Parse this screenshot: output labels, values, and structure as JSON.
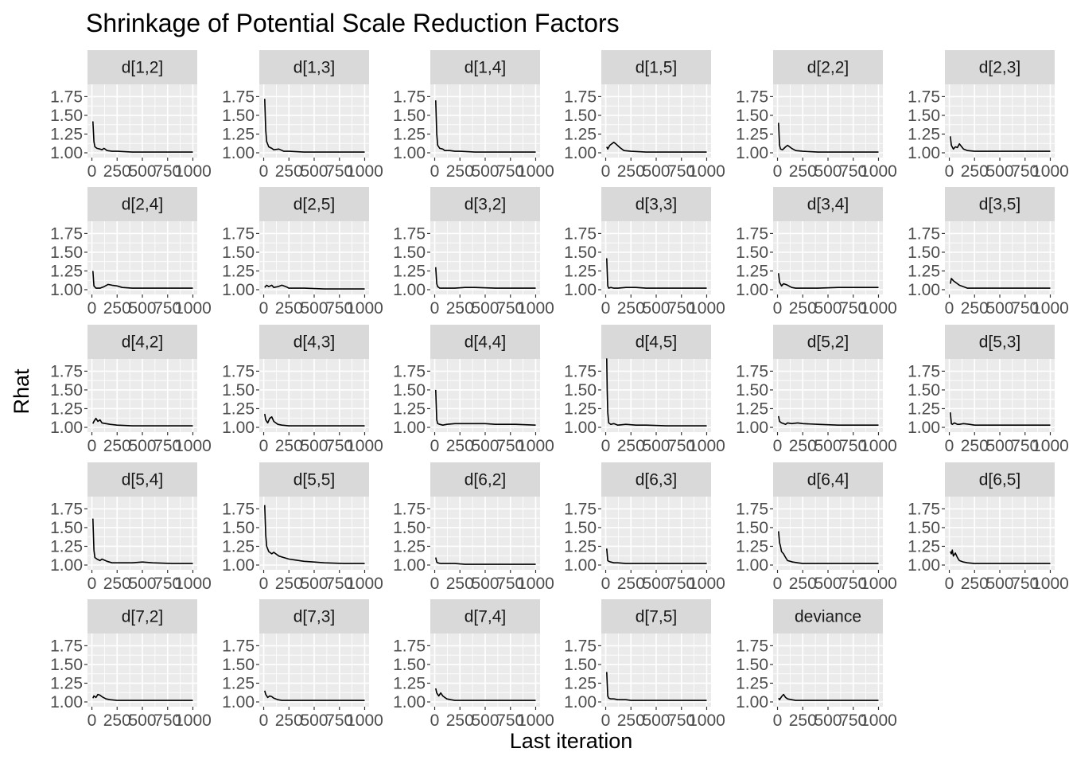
{
  "chart_data": {
    "type": "line",
    "title": "Shrinkage of Potential Scale Reduction Factors",
    "xlabel": "Last iteration",
    "ylabel": "Rhat",
    "xlim": [
      0,
      1000
    ],
    "ylim": [
      1.0,
      1.85
    ],
    "x_ticks": [
      0,
      250,
      500,
      750,
      1000
    ],
    "x_tick_labels": [
      "0",
      "250",
      "500",
      "750",
      "1000"
    ],
    "y_ticks": [
      1.0,
      1.25,
      1.5,
      1.75
    ],
    "y_tick_labels": [
      "1.00",
      "1.25",
      "1.50",
      "1.75"
    ],
    "grid": true,
    "panel_background": "#EBEBEB",
    "strip_background": "#D9D9D9",
    "grid_color": "#FFFFFF",
    "line_color": "#000000",
    "facets": [
      {
        "label": "d[1,2]",
        "x": [
          10,
          20,
          30,
          50,
          80,
          100,
          120,
          150,
          200,
          250,
          400,
          600,
          800,
          1000
        ],
        "y": [
          1.42,
          1.15,
          1.08,
          1.06,
          1.05,
          1.04,
          1.06,
          1.03,
          1.02,
          1.02,
          1.01,
          1.01,
          1.01,
          1.01
        ]
      },
      {
        "label": "d[1,3]",
        "x": [
          10,
          20,
          30,
          50,
          80,
          100,
          150,
          200,
          250,
          400,
          600,
          800,
          1000
        ],
        "y": [
          1.72,
          1.3,
          1.15,
          1.08,
          1.06,
          1.04,
          1.05,
          1.02,
          1.02,
          1.01,
          1.01,
          1.01,
          1.01
        ]
      },
      {
        "label": "d[1,4]",
        "x": [
          10,
          20,
          30,
          50,
          80,
          100,
          150,
          200,
          250,
          400,
          600,
          800,
          1000
        ],
        "y": [
          1.7,
          1.25,
          1.1,
          1.06,
          1.05,
          1.03,
          1.03,
          1.02,
          1.02,
          1.01,
          1.01,
          1.01,
          1.01
        ]
      },
      {
        "label": "d[1,5]",
        "x": [
          10,
          20,
          40,
          60,
          80,
          100,
          140,
          180,
          250,
          400,
          600,
          800,
          1000
        ],
        "y": [
          1.08,
          1.05,
          1.1,
          1.12,
          1.14,
          1.12,
          1.07,
          1.03,
          1.02,
          1.01,
          1.01,
          1.01,
          1.01
        ]
      },
      {
        "label": "d[2,2]",
        "x": [
          10,
          20,
          30,
          50,
          80,
          100,
          140,
          180,
          250,
          400,
          600,
          800,
          1000
        ],
        "y": [
          1.4,
          1.1,
          1.05,
          1.04,
          1.08,
          1.1,
          1.06,
          1.03,
          1.02,
          1.01,
          1.01,
          1.01,
          1.01
        ]
      },
      {
        "label": "d[2,3]",
        "x": [
          10,
          20,
          40,
          60,
          80,
          100,
          140,
          180,
          250,
          400,
          600,
          800,
          1000
        ],
        "y": [
          1.22,
          1.1,
          1.05,
          1.08,
          1.07,
          1.12,
          1.05,
          1.03,
          1.02,
          1.02,
          1.02,
          1.02,
          1.02
        ]
      },
      {
        "label": "d[2,4]",
        "x": [
          10,
          20,
          40,
          80,
          120,
          160,
          200,
          250,
          300,
          400,
          600,
          800,
          1000
        ],
        "y": [
          1.25,
          1.05,
          1.02,
          1.02,
          1.04,
          1.07,
          1.06,
          1.05,
          1.03,
          1.02,
          1.02,
          1.02,
          1.02
        ]
      },
      {
        "label": "d[2,5]",
        "x": [
          10,
          30,
          50,
          80,
          100,
          140,
          180,
          220,
          250,
          400,
          600,
          800,
          1000
        ],
        "y": [
          1.03,
          1.06,
          1.04,
          1.06,
          1.03,
          1.04,
          1.06,
          1.04,
          1.02,
          1.02,
          1.01,
          1.01,
          1.01
        ]
      },
      {
        "label": "d[3,2]",
        "x": [
          10,
          20,
          30,
          50,
          80,
          120,
          200,
          300,
          400,
          600,
          800,
          1000
        ],
        "y": [
          1.3,
          1.08,
          1.04,
          1.02,
          1.02,
          1.02,
          1.02,
          1.03,
          1.03,
          1.02,
          1.02,
          1.02
        ]
      },
      {
        "label": "d[3,3]",
        "x": [
          10,
          20,
          30,
          50,
          80,
          120,
          200,
          300,
          400,
          600,
          800,
          1000
        ],
        "y": [
          1.42,
          1.05,
          1.02,
          1.03,
          1.02,
          1.02,
          1.03,
          1.03,
          1.02,
          1.02,
          1.02,
          1.02
        ]
      },
      {
        "label": "d[3,4]",
        "x": [
          10,
          20,
          40,
          60,
          80,
          100,
          140,
          180,
          250,
          400,
          600,
          800,
          1000
        ],
        "y": [
          1.22,
          1.1,
          1.05,
          1.08,
          1.07,
          1.06,
          1.03,
          1.02,
          1.02,
          1.02,
          1.03,
          1.03,
          1.03
        ]
      },
      {
        "label": "d[3,5]",
        "x": [
          10,
          20,
          40,
          60,
          80,
          100,
          140,
          180,
          250,
          400,
          600,
          800,
          1000
        ],
        "y": [
          1.08,
          1.15,
          1.12,
          1.1,
          1.08,
          1.06,
          1.04,
          1.02,
          1.02,
          1.02,
          1.02,
          1.02,
          1.02
        ]
      },
      {
        "label": "d[4,2]",
        "x": [
          10,
          20,
          40,
          60,
          80,
          100,
          140,
          180,
          250,
          400,
          600,
          800,
          1000
        ],
        "y": [
          1.05,
          1.08,
          1.12,
          1.08,
          1.1,
          1.06,
          1.05,
          1.04,
          1.03,
          1.02,
          1.02,
          1.02,
          1.02
        ]
      },
      {
        "label": "d[4,3]",
        "x": [
          10,
          20,
          40,
          60,
          80,
          100,
          140,
          180,
          250,
          400,
          600,
          800,
          1000
        ],
        "y": [
          1.18,
          1.1,
          1.06,
          1.12,
          1.14,
          1.08,
          1.04,
          1.03,
          1.02,
          1.02,
          1.02,
          1.02,
          1.02
        ]
      },
      {
        "label": "d[4,4]",
        "x": [
          10,
          20,
          30,
          50,
          80,
          120,
          200,
          300,
          400,
          500,
          600,
          800,
          1000
        ],
        "y": [
          1.5,
          1.1,
          1.05,
          1.04,
          1.03,
          1.04,
          1.05,
          1.05,
          1.05,
          1.05,
          1.04,
          1.04,
          1.03
        ]
      },
      {
        "label": "d[4,5]",
        "x": [
          10,
          15,
          20,
          30,
          50,
          80,
          120,
          200,
          300,
          400,
          600,
          800,
          1000
        ],
        "y": [
          1.92,
          1.5,
          1.2,
          1.06,
          1.04,
          1.05,
          1.03,
          1.04,
          1.03,
          1.03,
          1.02,
          1.02,
          1.02
        ]
      },
      {
        "label": "d[5,2]",
        "x": [
          10,
          20,
          40,
          60,
          80,
          100,
          140,
          200,
          250,
          400,
          600,
          800,
          1000
        ],
        "y": [
          1.15,
          1.08,
          1.06,
          1.05,
          1.04,
          1.06,
          1.05,
          1.06,
          1.05,
          1.04,
          1.03,
          1.03,
          1.03
        ]
      },
      {
        "label": "d[5,3]",
        "x": [
          10,
          20,
          30,
          50,
          80,
          100,
          140,
          200,
          250,
          400,
          600,
          800,
          1000
        ],
        "y": [
          1.2,
          1.05,
          1.04,
          1.06,
          1.04,
          1.04,
          1.05,
          1.04,
          1.03,
          1.03,
          1.03,
          1.03,
          1.03
        ]
      },
      {
        "label": "d[5,4]",
        "x": [
          10,
          20,
          30,
          50,
          80,
          100,
          150,
          200,
          250,
          400,
          500,
          600,
          800,
          1000
        ],
        "y": [
          1.62,
          1.2,
          1.1,
          1.08,
          1.06,
          1.08,
          1.05,
          1.03,
          1.03,
          1.03,
          1.04,
          1.03,
          1.02,
          1.02
        ]
      },
      {
        "label": "d[5,5]",
        "x": [
          10,
          20,
          30,
          50,
          80,
          100,
          150,
          200,
          250,
          300,
          400,
          500,
          600,
          800,
          1000
        ],
        "y": [
          1.8,
          1.4,
          1.25,
          1.18,
          1.15,
          1.17,
          1.12,
          1.1,
          1.08,
          1.07,
          1.05,
          1.04,
          1.03,
          1.02,
          1.02
        ]
      },
      {
        "label": "d[6,2]",
        "x": [
          10,
          20,
          30,
          60,
          100,
          200,
          300,
          400,
          600,
          800,
          1000
        ],
        "y": [
          1.1,
          1.04,
          1.03,
          1.02,
          1.02,
          1.02,
          1.01,
          1.01,
          1.01,
          1.01,
          1.01
        ]
      },
      {
        "label": "d[6,3]",
        "x": [
          10,
          20,
          30,
          50,
          80,
          120,
          200,
          300,
          400,
          600,
          800,
          1000
        ],
        "y": [
          1.22,
          1.06,
          1.05,
          1.04,
          1.03,
          1.03,
          1.02,
          1.02,
          1.02,
          1.02,
          1.02,
          1.02
        ]
      },
      {
        "label": "d[6,4]",
        "x": [
          10,
          20,
          30,
          40,
          60,
          80,
          100,
          150,
          200,
          250,
          400,
          600,
          800,
          1000
        ],
        "y": [
          1.45,
          1.3,
          1.25,
          1.18,
          1.15,
          1.1,
          1.06,
          1.04,
          1.03,
          1.02,
          1.02,
          1.02,
          1.02,
          1.02
        ]
      },
      {
        "label": "d[6,5]",
        "x": [
          10,
          20,
          30,
          40,
          60,
          80,
          100,
          140,
          180,
          250,
          400,
          600,
          800,
          1000
        ],
        "y": [
          1.18,
          1.15,
          1.2,
          1.12,
          1.16,
          1.1,
          1.06,
          1.04,
          1.03,
          1.02,
          1.02,
          1.02,
          1.02,
          1.02
        ]
      },
      {
        "label": "d[7,2]",
        "x": [
          10,
          20,
          40,
          60,
          80,
          100,
          140,
          180,
          250,
          400,
          600,
          800,
          1000
        ],
        "y": [
          1.05,
          1.08,
          1.06,
          1.1,
          1.09,
          1.07,
          1.04,
          1.03,
          1.02,
          1.02,
          1.02,
          1.02,
          1.02
        ]
      },
      {
        "label": "d[7,3]",
        "x": [
          10,
          20,
          40,
          60,
          80,
          100,
          140,
          180,
          250,
          400,
          600,
          800,
          1000
        ],
        "y": [
          1.15,
          1.1,
          1.06,
          1.08,
          1.07,
          1.05,
          1.03,
          1.02,
          1.02,
          1.02,
          1.02,
          1.02,
          1.02
        ]
      },
      {
        "label": "d[7,4]",
        "x": [
          10,
          20,
          40,
          60,
          80,
          100,
          120,
          160,
          200,
          250,
          400,
          600,
          800,
          1000
        ],
        "y": [
          1.18,
          1.12,
          1.08,
          1.12,
          1.08,
          1.06,
          1.04,
          1.03,
          1.02,
          1.02,
          1.02,
          1.02,
          1.02,
          1.02
        ]
      },
      {
        "label": "d[7,5]",
        "x": [
          10,
          20,
          30,
          50,
          80,
          120,
          200,
          250,
          400,
          600,
          800,
          1000
        ],
        "y": [
          1.4,
          1.08,
          1.05,
          1.04,
          1.04,
          1.03,
          1.03,
          1.02,
          1.02,
          1.02,
          1.02,
          1.02
        ]
      },
      {
        "label": "deviance",
        "x": [
          10,
          20,
          40,
          60,
          80,
          100,
          140,
          180,
          250,
          400,
          600,
          800,
          1000
        ],
        "y": [
          1.05,
          1.03,
          1.07,
          1.1,
          1.06,
          1.04,
          1.03,
          1.02,
          1.02,
          1.02,
          1.02,
          1.02,
          1.02
        ]
      }
    ]
  }
}
